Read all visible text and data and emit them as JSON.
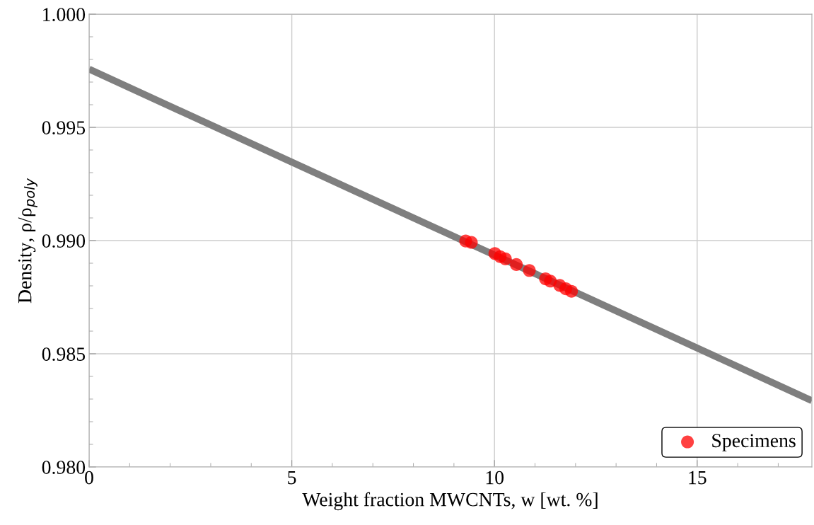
{
  "chart_data": {
    "type": "scatter",
    "xlabel": "Weight fraction MWCNTs, w [wt. %]",
    "ylabel": "Density, ρ/ρ$_{poly}$",
    "series": [
      {
        "type": "line",
        "marker": "none",
        "color": "#7f7f7f",
        "x": [
          0,
          17.83
        ],
        "values": [
          0.99757,
          0.98293
        ]
      },
      {
        "marker": "circle",
        "name": "Specimens",
        "color": "#ff0000",
        "x": [
          9.29,
          9.43,
          10.01,
          10.14,
          10.27,
          10.54,
          10.86,
          11.26,
          11.38,
          11.61,
          11.76,
          11.9
        ],
        "values": [
          0.98998,
          0.98992,
          0.98943,
          0.98929,
          0.98919,
          0.98894,
          0.98868,
          0.98831,
          0.98821,
          0.98802,
          0.98787,
          0.98776
        ]
      }
    ],
    "xlim": [
      0,
      17.83
    ],
    "xticks": [
      0,
      5,
      10,
      15
    ],
    "ylim": [
      0.98,
      1.0
    ],
    "yticks": [
      {
        "value": 0.98,
        "label": "0.980"
      },
      0.985,
      {
        "value": 0.99,
        "label": "0.990"
      },
      0.995,
      {
        "value": 1.0,
        "label": "1.000"
      }
    ],
    "grid": true,
    "legend": "bottom right"
  }
}
